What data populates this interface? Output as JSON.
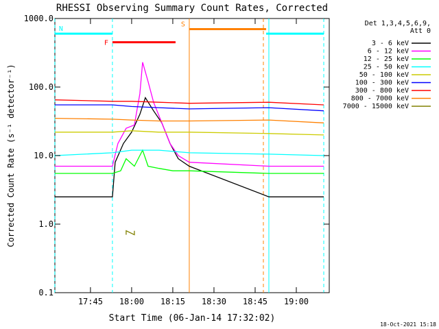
{
  "chart_data": {
    "type": "line",
    "title": "RHESSI Observing Summary Count Rates, Corrected",
    "xlabel": "Start Time (06-Jan-14 17:32:02)",
    "ylabel": "Corrected Count Rate (s⁻¹ detector⁻¹)",
    "yscale": "log",
    "ylim": [
      0.1,
      1000
    ],
    "xlim": [
      "17:32:02",
      "19:12:00"
    ],
    "x_ticks": [
      "17:45",
      "18:00",
      "18:15",
      "18:30",
      "18:45",
      "19:00"
    ],
    "y_ticks": [
      "0.1",
      "1.0",
      "10.0",
      "100.0",
      "1000.0"
    ],
    "legend_title": [
      "Det 1,3,4,5,6,9,",
      "Att 0"
    ],
    "legend_position": "top-right, outside plot",
    "timestamp": "18-Oct-2021 15:18",
    "flags": [
      {
        "label": "N",
        "start": "17:32",
        "end": "17:53",
        "y": 600,
        "color": "#00ffff"
      },
      {
        "label": "F",
        "start": "17:53",
        "end": "18:16",
        "y": 450,
        "color": "#ff0000"
      },
      {
        "label": "S",
        "start": "18:21",
        "end": "18:49",
        "y": 700,
        "color": "#ff8000"
      },
      {
        "label": "",
        "start": "18:49",
        "end": "19:10",
        "y": 600,
        "color": "#00ffff"
      }
    ],
    "vlines": [
      {
        "time": "17:32",
        "color": "#00ffff",
        "style": "dashed"
      },
      {
        "time": "17:53",
        "color": "#00ffff",
        "style": "dashed"
      },
      {
        "time": "18:21",
        "color": "#ff8000",
        "style": "solid"
      },
      {
        "time": "18:48",
        "color": "#ff8000",
        "style": "dashed"
      },
      {
        "time": "18:50",
        "color": "#00ffff",
        "style": "solid"
      },
      {
        "time": "19:10",
        "color": "#00ffff",
        "style": "dashed"
      }
    ],
    "series": [
      {
        "name": "3 - 6 keV",
        "color": "#000000",
        "x": [
          "17:32",
          "17:53",
          "17:54",
          "17:57",
          "18:00",
          "18:03",
          "18:05",
          "18:08",
          "18:11",
          "18:14",
          "18:17",
          "18:21",
          "18:50",
          "19:10"
        ],
        "y": [
          2.5,
          2.5,
          8,
          15,
          22,
          40,
          70,
          45,
          30,
          15,
          9,
          7,
          2.5,
          2.5
        ]
      },
      {
        "name": "6 - 12 keV",
        "color": "#ff00ff",
        "x": [
          "17:32",
          "17:53",
          "17:55",
          "17:58",
          "18:01",
          "18:03",
          "18:04",
          "18:06",
          "18:08",
          "18:11",
          "18:14",
          "18:17",
          "18:21",
          "18:50",
          "19:10"
        ],
        "y": [
          7,
          7,
          15,
          25,
          28,
          80,
          230,
          120,
          60,
          30,
          15,
          10,
          8,
          7,
          7
        ]
      },
      {
        "name": "12 - 25 keV",
        "color": "#00ff00",
        "x": [
          "17:32",
          "17:53",
          "17:56",
          "17:58",
          "18:01",
          "18:04",
          "18:06",
          "18:10",
          "18:15",
          "18:21",
          "18:50",
          "19:10"
        ],
        "y": [
          5.5,
          5.5,
          6,
          9,
          7,
          12,
          7,
          6.5,
          6,
          6,
          5.5,
          5.5
        ]
      },
      {
        "name": "25 - 50 keV",
        "color": "#00ffff",
        "x": [
          "17:32",
          "17:53",
          "18:00",
          "18:10",
          "18:21",
          "18:50",
          "19:10"
        ],
        "y": [
          10,
          11,
          12,
          12,
          11,
          10.5,
          10
        ]
      },
      {
        "name": "50 - 100 keV",
        "color": "#cccc00",
        "x": [
          "17:32",
          "17:53",
          "18:00",
          "18:10",
          "18:21",
          "18:50",
          "19:10"
        ],
        "y": [
          22,
          22,
          23,
          22,
          22,
          21,
          20
        ]
      },
      {
        "name": "100 - 300 keV",
        "color": "#0000ff",
        "x": [
          "17:32",
          "17:53",
          "18:00",
          "18:10",
          "18:21",
          "18:50",
          "19:10"
        ],
        "y": [
          55,
          55,
          52,
          50,
          48,
          50,
          45
        ]
      },
      {
        "name": "300 - 800 keV",
        "color": "#ff0000",
        "x": [
          "17:32",
          "17:53",
          "18:00",
          "18:10",
          "18:21",
          "18:50",
          "19:10"
        ],
        "y": [
          65,
          62,
          62,
          60,
          58,
          60,
          55
        ]
      },
      {
        "name": "800 - 7000 keV",
        "color": "#ff8000",
        "x": [
          "17:32",
          "17:53",
          "18:00",
          "18:10",
          "18:21",
          "18:50",
          "19:10"
        ],
        "y": [
          35,
          34,
          33,
          32,
          32,
          33,
          30
        ]
      },
      {
        "name": "7000 - 15000 keV",
        "color": "#808000",
        "x": [
          "17:58",
          "17:58",
          "18:01",
          "18:01"
        ],
        "y": [
          0.7,
          0.8,
          0.7,
          0.8
        ]
      }
    ]
  }
}
